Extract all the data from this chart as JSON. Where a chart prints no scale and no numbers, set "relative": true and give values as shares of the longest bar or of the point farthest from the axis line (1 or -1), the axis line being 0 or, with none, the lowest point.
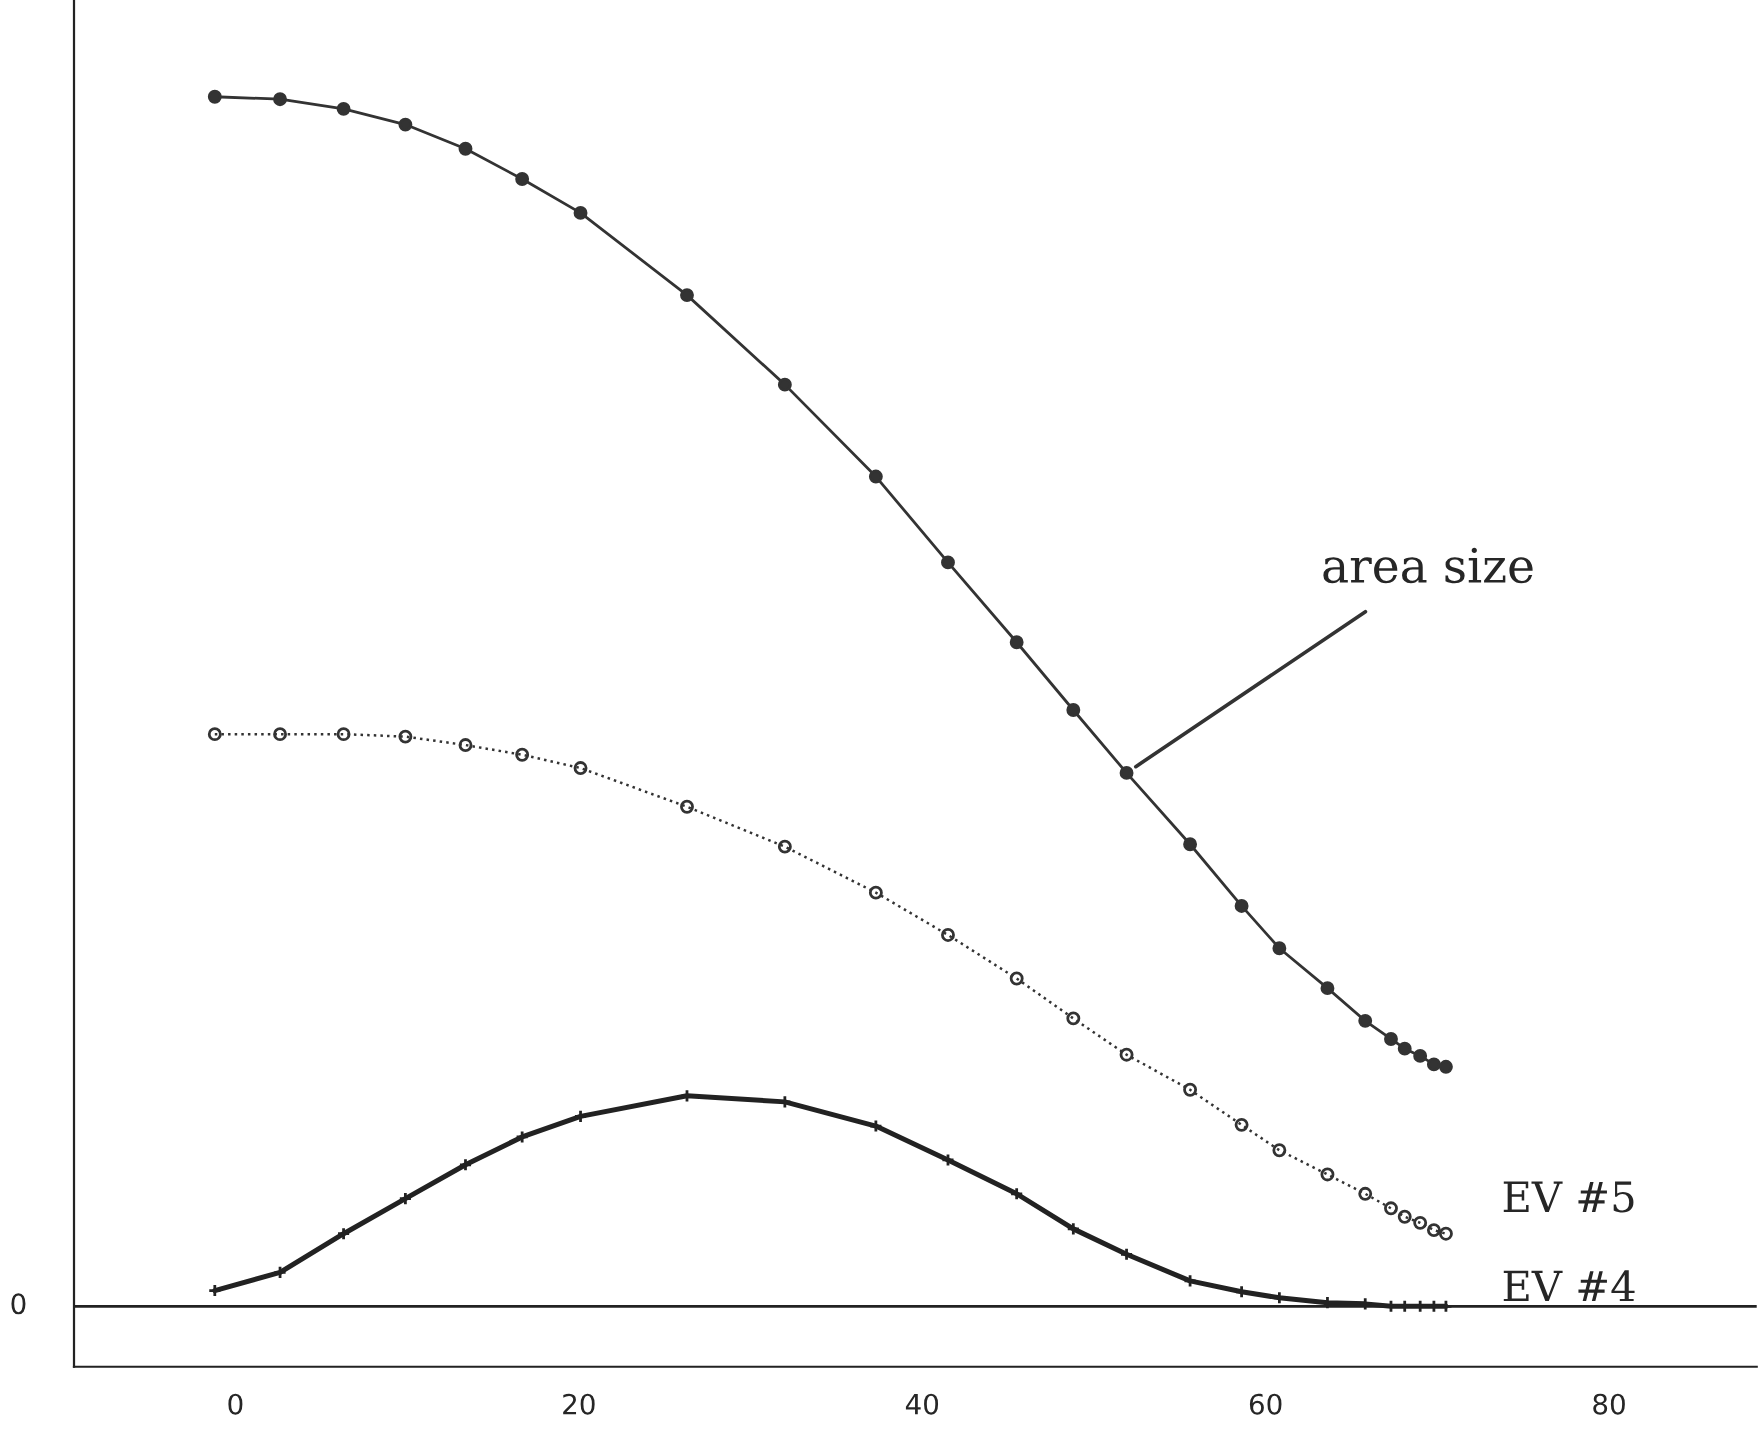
{
  "chart_data": {
    "type": "line",
    "relative": true,
    "xlim": [
      -9.4,
      88.6
    ],
    "xticks": [
      0,
      20,
      40,
      60,
      80
    ],
    "annotations": [
      "0"
    ],
    "ref_lines": [
      {
        "axis": "y",
        "value": 0,
        "color": "#222222"
      }
    ],
    "grid": false,
    "series": [
      {
        "name": "area size",
        "color": "#333333",
        "marker": "circle",
        "line_style": "solid",
        "x": [
          -1.2,
          2.6,
          6.3,
          9.9,
          13.4,
          16.7,
          20.1,
          26.3,
          32.0,
          37.3,
          41.5,
          45.5,
          48.8,
          51.9,
          55.6,
          58.6,
          60.8,
          63.6,
          65.8,
          67.3,
          68.1,
          69.0,
          69.8,
          70.5
        ],
        "values": [
          1.0,
          0.998,
          0.99,
          0.977,
          0.957,
          0.932,
          0.904,
          0.836,
          0.762,
          0.686,
          0.615,
          0.549,
          0.493,
          0.441,
          0.382,
          0.331,
          0.296,
          0.263,
          0.236,
          0.221,
          0.213,
          0.207,
          0.2,
          0.198
        ]
      },
      {
        "name": "EV #5",
        "color": "#333333",
        "marker": "circle",
        "line_style": "dotted",
        "x": [
          -1.2,
          2.6,
          6.3,
          9.9,
          13.4,
          16.7,
          20.1,
          26.3,
          32.0,
          37.3,
          41.5,
          45.5,
          48.8,
          51.9,
          55.6,
          58.6,
          60.8,
          63.6,
          65.8,
          67.3,
          68.1,
          69.0,
          69.8,
          70.5
        ],
        "values": [
          0.473,
          0.473,
          0.473,
          0.471,
          0.464,
          0.456,
          0.445,
          0.413,
          0.38,
          0.342,
          0.307,
          0.271,
          0.238,
          0.208,
          0.179,
          0.15,
          0.129,
          0.109,
          0.093,
          0.081,
          0.074,
          0.069,
          0.063,
          0.06
        ]
      },
      {
        "name": "EV #4",
        "color": "#222222",
        "marker": "cross",
        "line_style": "solid",
        "x": [
          -1.2,
          2.6,
          6.3,
          9.9,
          13.4,
          16.7,
          20.1,
          26.3,
          32.0,
          37.3,
          41.5,
          45.5,
          48.8,
          51.9,
          55.6,
          58.6,
          60.8,
          63.6,
          65.8,
          67.3,
          68.1,
          69.0,
          69.8,
          70.5
        ],
        "values": [
          0.013,
          0.028,
          0.06,
          0.089,
          0.117,
          0.14,
          0.157,
          0.174,
          0.169,
          0.149,
          0.121,
          0.093,
          0.064,
          0.043,
          0.021,
          0.012,
          0.007,
          0.003,
          0.002,
          0.0,
          0.0,
          0.0,
          0.0,
          0.0
        ]
      }
    ]
  }
}
